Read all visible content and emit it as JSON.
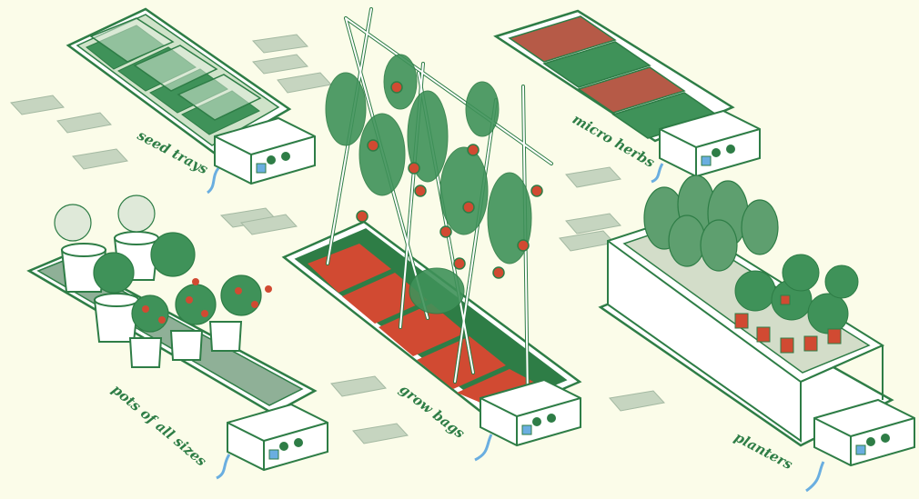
{
  "labels": {
    "seed_trays": "seed trays",
    "micro_herbs": "micro herbs",
    "pots": "pots of all sizes",
    "grow_bags": "grow bags",
    "planters": "planters"
  },
  "colors": {
    "background": "#fbfce9",
    "outline": "#2e7d46",
    "leaf": "#3f9259",
    "leaf_light": "#8fbf97",
    "red": "#d14a32",
    "white": "#ffffff",
    "mat": "#b9ccb6",
    "water": "#6aaee0"
  }
}
